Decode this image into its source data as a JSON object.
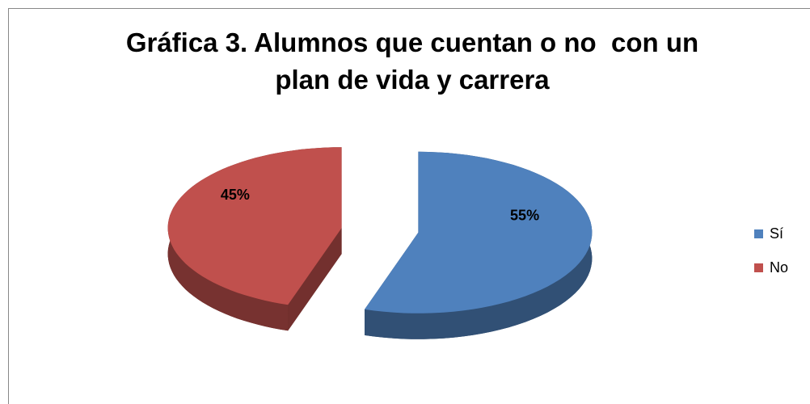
{
  "chart_data": {
    "type": "pie3d",
    "title": "Gráfica 3. Alumnos que cuentan o no  con un plan de vida y carrera",
    "categories": [
      "Sí",
      "No"
    ],
    "values": [
      55,
      45
    ],
    "value_labels": [
      "55%",
      "45%"
    ],
    "colors": [
      "#4f81bd",
      "#c0504d"
    ],
    "legend": "right"
  }
}
